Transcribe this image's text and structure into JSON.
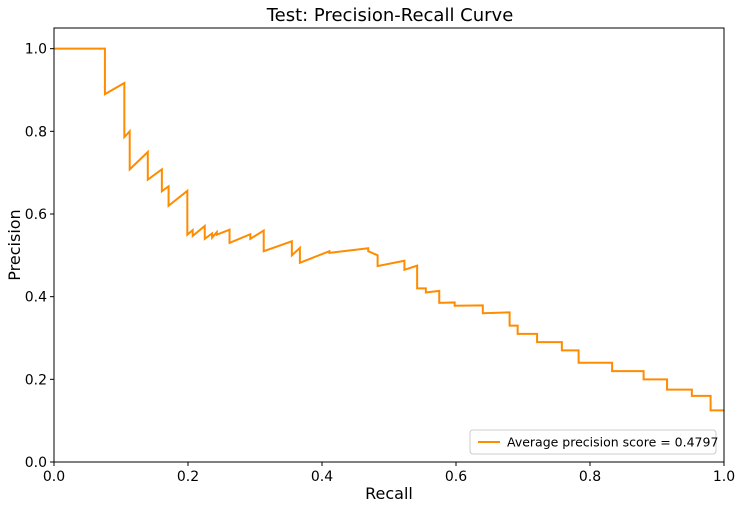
{
  "chart_data": {
    "type": "line",
    "title": "Test: Precision-Recall Curve",
    "xlabel": "Recall",
    "ylabel": "Precision",
    "xlim": [
      0.0,
      1.0
    ],
    "ylim": [
      0.0,
      1.05
    ],
    "grid": false,
    "legend_placement": "lower-right",
    "x_ticks": [
      "0.0",
      "0.2",
      "0.4",
      "0.6",
      "0.8",
      "1.0"
    ],
    "y_ticks": [
      "0.0",
      "0.2",
      "0.4",
      "0.6",
      "0.8",
      "1.0"
    ],
    "series": [
      {
        "name": "Average precision score = 0.4797",
        "color": "#ff8c00",
        "step": true,
        "x": [
          0.0,
          0.076,
          0.076,
          0.105,
          0.105,
          0.113,
          0.113,
          0.14,
          0.14,
          0.161,
          0.161,
          0.171,
          0.171,
          0.199,
          0.199,
          0.207,
          0.207,
          0.225,
          0.225,
          0.236,
          0.236,
          0.243,
          0.243,
          0.262,
          0.262,
          0.293,
          0.293,
          0.313,
          0.313,
          0.355,
          0.355,
          0.367,
          0.367,
          0.411,
          0.411,
          0.469,
          0.469,
          0.483,
          0.483,
          0.523,
          0.523,
          0.542,
          0.542,
          0.555,
          0.555,
          0.575,
          0.575,
          0.598,
          0.598,
          0.64,
          0.64,
          0.68,
          0.68,
          0.692,
          0.692,
          0.721,
          0.721,
          0.758,
          0.758,
          0.783,
          0.783,
          0.833,
          0.833,
          0.88,
          0.88,
          0.915,
          0.915,
          0.952,
          0.952,
          0.98,
          0.98,
          0.996,
          0.996,
          1.0
        ],
        "y": [
          1.0,
          1.0,
          0.89,
          0.917,
          0.786,
          0.8,
          0.708,
          0.75,
          0.683,
          0.708,
          0.655,
          0.667,
          0.62,
          0.656,
          0.55,
          0.561,
          0.547,
          0.571,
          0.54,
          0.553,
          0.543,
          0.556,
          0.55,
          0.562,
          0.53,
          0.551,
          0.54,
          0.56,
          0.51,
          0.534,
          0.5,
          0.518,
          0.482,
          0.51,
          0.506,
          0.517,
          0.51,
          0.5,
          0.474,
          0.487,
          0.465,
          0.475,
          0.42,
          0.42,
          0.41,
          0.414,
          0.385,
          0.386,
          0.378,
          0.379,
          0.36,
          0.362,
          0.33,
          0.33,
          0.31,
          0.31,
          0.29,
          0.29,
          0.27,
          0.27,
          0.24,
          0.24,
          0.22,
          0.22,
          0.2,
          0.2,
          0.175,
          0.175,
          0.16,
          0.16,
          0.125,
          0.125,
          0.125,
          0.125
        ]
      }
    ]
  }
}
